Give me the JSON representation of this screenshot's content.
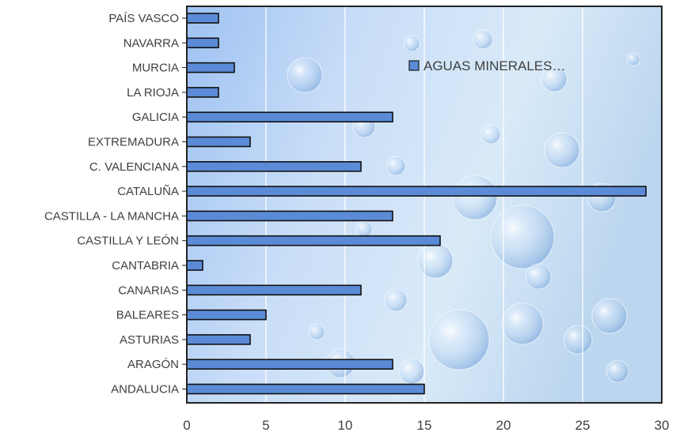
{
  "chart_data": {
    "type": "bar",
    "orientation": "horizontal",
    "categories": [
      "PAÍS VASCO",
      "NAVARRA",
      "MURCIA",
      "LA RIOJA",
      "GALICIA",
      "EXTREMADURA",
      "C. VALENCIANA",
      "CATALUÑA",
      "CASTILLA - LA MANCHA",
      "CASTILLA Y LEÓN",
      "CANTABRIA",
      "CANARIAS",
      "BALEARES",
      "ASTURIAS",
      "ARAGÓN",
      "ANDALUCIA"
    ],
    "series": [
      {
        "name": "AGUAS MINERALES…",
        "values": [
          2,
          2,
          3,
          2,
          13,
          4,
          11,
          29,
          13,
          16,
          1,
          11,
          5,
          4,
          13,
          15
        ],
        "color": "#5B8BD6"
      }
    ],
    "xlim": [
      0,
      30
    ],
    "xticks": [
      0,
      5,
      10,
      15,
      20,
      25,
      30
    ],
    "grid": true,
    "legend_position": "top-right"
  }
}
